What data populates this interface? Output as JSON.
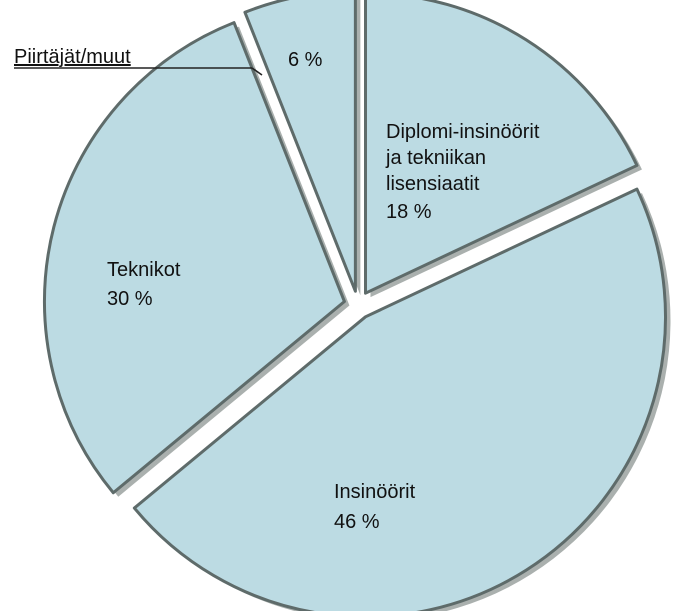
{
  "chart_data": {
    "type": "pie",
    "title": "",
    "slices": [
      {
        "label": "Diplomi-insinöörit ja tekniikan lisensiaatit",
        "label_lines": [
          "Diplomi-insinöörit",
          "ja tekniikan",
          "lisensiaatit"
        ],
        "value": 18,
        "value_text": "18 %"
      },
      {
        "label": "Insinöörit",
        "label_lines": [
          "Insinöörit"
        ],
        "value": 46,
        "value_text": "46 %"
      },
      {
        "label": "Teknikot",
        "label_lines": [
          "Teknikot"
        ],
        "value": 30,
        "value_text": "30  %"
      },
      {
        "label": "Piirtäjät/muut",
        "label_lines": [],
        "value": 6,
        "value_text": "6  %",
        "callout_label": "Piirtäjät/muut"
      }
    ],
    "colors": {
      "slice_fill": "#bcdbe3",
      "slice_edge": "#5e6b6a",
      "shadow": "#aab0ae",
      "text": "#111111"
    },
    "legend": "none",
    "start_direction": "top",
    "direction": "clockwise",
    "exploded": true
  }
}
